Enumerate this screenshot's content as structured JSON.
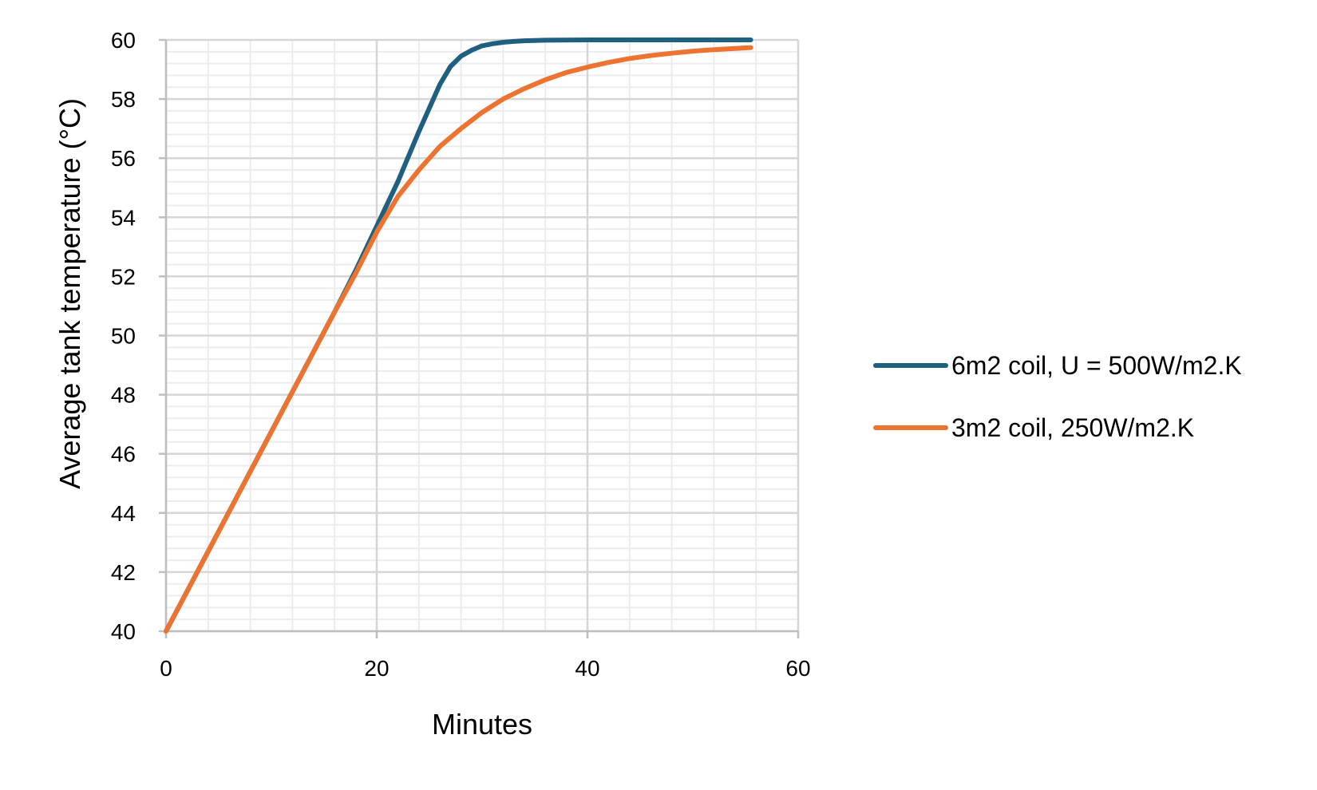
{
  "chart_data": {
    "type": "line",
    "xlabel": "Minutes",
    "ylabel": "Average tank temperature (°C)",
    "xlim": [
      0,
      60
    ],
    "ylim": [
      40,
      60
    ],
    "xticks": [
      0,
      20,
      40,
      60
    ],
    "yticks": [
      40,
      42,
      44,
      46,
      48,
      50,
      52,
      54,
      56,
      58,
      60
    ],
    "grid": true,
    "minor_grid": true,
    "legend": "right",
    "series": [
      {
        "name": "6m2 coil, U = 500W/m2.K",
        "color": "#1f5f7f",
        "x": [
          0,
          4,
          8,
          12,
          16,
          18,
          20,
          22,
          24,
          25.5,
          26,
          27,
          28,
          29,
          30,
          31,
          32,
          33,
          34,
          36,
          40,
          45,
          50,
          55.5
        ],
        "y": [
          40,
          42.7,
          45.4,
          48.1,
          50.8,
          52.2,
          53.7,
          55.2,
          56.9,
          58.1,
          58.5,
          59.1,
          59.45,
          59.65,
          59.8,
          59.87,
          59.92,
          59.95,
          59.97,
          59.99,
          60,
          60,
          60,
          60
        ]
      },
      {
        "name": "3m2 coil, 250W/m2.K",
        "color": "#ed7430",
        "x": [
          0,
          4,
          8,
          12,
          16,
          18,
          20,
          22,
          24,
          26,
          28,
          30,
          32,
          34,
          36,
          38,
          40,
          42,
          44,
          46,
          48,
          50,
          52,
          55.5
        ],
        "y": [
          40,
          42.7,
          45.4,
          48.1,
          50.8,
          52.1,
          53.5,
          54.7,
          55.6,
          56.4,
          57.0,
          57.55,
          58.0,
          58.35,
          58.65,
          58.9,
          59.08,
          59.24,
          59.37,
          59.47,
          59.55,
          59.62,
          59.67,
          59.74
        ]
      }
    ]
  }
}
